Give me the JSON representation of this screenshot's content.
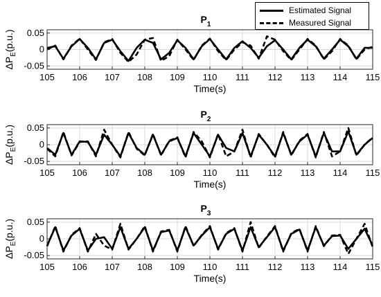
{
  "legend": {
    "items": [
      {
        "label": "Estimated Signal",
        "style": "solid"
      },
      {
        "label": "Measured Signal",
        "style": "dashed"
      }
    ]
  },
  "colors": {
    "line": "#000000",
    "grid": "#d9d9d9",
    "axis": "#262626"
  },
  "chart_data": [
    {
      "type": "line",
      "title": "P1",
      "title_main": "P",
      "title_sub": "1",
      "xlabel": "Time(s)",
      "ylabel": "ΔP",
      "ylabel_sub": "E",
      "ylabel_unit": "(p.u.)",
      "xlim": [
        105,
        115
      ],
      "ylim": [
        -0.06,
        0.06
      ],
      "xticks": [
        105,
        106,
        107,
        108,
        109,
        110,
        111,
        112,
        113,
        114,
        115
      ],
      "yticks": [
        -0.05,
        0,
        0.05
      ],
      "ytick_labels": [
        "-0.05",
        "0",
        "0.05"
      ],
      "grid": true,
      "series": [
        {
          "name": "Estimated Signal",
          "style": "solid",
          "x": [
            105.0,
            105.25,
            105.5,
            105.75,
            106.0,
            106.25,
            106.5,
            106.75,
            107.0,
            107.25,
            107.5,
            107.75,
            108.0,
            108.25,
            108.5,
            108.75,
            109.0,
            109.25,
            109.5,
            109.75,
            110.0,
            110.25,
            110.5,
            110.75,
            111.0,
            111.25,
            111.5,
            111.75,
            112.0,
            112.25,
            112.5,
            112.75,
            113.0,
            113.25,
            113.5,
            113.75,
            114.0,
            114.25,
            114.5,
            114.75,
            115.0
          ],
          "y": [
            0.005,
            0.01,
            -0.028,
            0.01,
            0.032,
            0.005,
            -0.03,
            0.02,
            0.03,
            -0.005,
            -0.035,
            0.005,
            0.03,
            0.02,
            -0.03,
            -0.01,
            0.028,
            0.005,
            -0.03,
            0.01,
            0.032,
            0.0,
            -0.03,
            0.005,
            0.025,
            0.005,
            -0.025,
            0.01,
            0.028,
            0.0,
            -0.03,
            0.005,
            0.03,
            0.01,
            -0.028,
            0.0,
            0.03,
            0.01,
            -0.028,
            0.005,
            0.005
          ]
        },
        {
          "name": "Measured Signal",
          "style": "dashed",
          "x": [
            105.0,
            105.25,
            105.5,
            105.75,
            106.0,
            106.25,
            106.5,
            106.75,
            107.0,
            107.25,
            107.5,
            107.75,
            108.0,
            108.25,
            108.5,
            108.75,
            109.0,
            109.25,
            109.5,
            109.75,
            110.0,
            110.25,
            110.5,
            110.75,
            111.0,
            111.25,
            111.5,
            111.75,
            112.0,
            112.25,
            112.5,
            112.75,
            113.0,
            113.25,
            113.5,
            113.75,
            114.0,
            114.25,
            114.5,
            114.75,
            115.0
          ],
          "y": [
            0.0,
            0.012,
            -0.03,
            0.012,
            0.033,
            0.0,
            -0.032,
            0.022,
            0.032,
            -0.01,
            -0.038,
            -0.015,
            0.03,
            0.035,
            -0.035,
            -0.02,
            0.03,
            0.0,
            -0.032,
            0.012,
            0.033,
            -0.005,
            -0.032,
            0.0,
            0.022,
            0.012,
            -0.028,
            0.04,
            0.03,
            -0.005,
            -0.032,
            0.0,
            0.032,
            0.012,
            -0.03,
            -0.005,
            0.032,
            0.012,
            -0.03,
            0.0,
            0.008
          ]
        }
      ]
    },
    {
      "type": "line",
      "title": "P2",
      "title_main": "P",
      "title_sub": "2",
      "xlabel": "Time(s)",
      "ylabel": "ΔP",
      "ylabel_sub": "E",
      "ylabel_unit": "(p.u.)",
      "xlim": [
        105,
        115
      ],
      "ylim": [
        -0.06,
        0.06
      ],
      "xticks": [
        105,
        106,
        107,
        108,
        109,
        110,
        111,
        112,
        113,
        114,
        115
      ],
      "yticks": [
        -0.05,
        0,
        0.05
      ],
      "ytick_labels": [
        "-0.05",
        "0",
        "0.05"
      ],
      "grid": true,
      "series": [
        {
          "name": "Estimated Signal",
          "style": "solid",
          "x": [
            105.0,
            105.25,
            105.5,
            105.75,
            106.0,
            106.25,
            106.5,
            106.75,
            107.0,
            107.25,
            107.5,
            107.75,
            108.0,
            108.25,
            108.5,
            108.75,
            109.0,
            109.25,
            109.5,
            109.75,
            110.0,
            110.25,
            110.5,
            110.75,
            111.0,
            111.25,
            111.5,
            111.75,
            112.0,
            112.25,
            112.5,
            112.75,
            113.0,
            113.25,
            113.5,
            113.75,
            114.0,
            114.25,
            114.5,
            114.75,
            115.0
          ],
          "y": [
            -0.01,
            -0.03,
            0.035,
            -0.03,
            0.01,
            0.008,
            -0.03,
            0.03,
            0.0,
            -0.035,
            0.035,
            -0.01,
            -0.03,
            0.03,
            -0.03,
            0.01,
            0.02,
            -0.035,
            0.035,
            0.0,
            -0.035,
            0.03,
            -0.01,
            -0.02,
            0.035,
            -0.035,
            0.03,
            0.0,
            -0.035,
            0.035,
            -0.03,
            0.01,
            0.03,
            -0.035,
            0.035,
            -0.02,
            -0.02,
            0.04,
            -0.03,
            0.0,
            0.02
          ]
        },
        {
          "name": "Measured Signal",
          "style": "dashed",
          "x": [
            105.0,
            105.25,
            105.5,
            105.75,
            106.0,
            106.25,
            106.5,
            106.75,
            107.0,
            107.25,
            107.5,
            107.75,
            108.0,
            108.25,
            108.5,
            108.75,
            109.0,
            109.25,
            109.5,
            109.75,
            110.0,
            110.25,
            110.5,
            110.75,
            111.0,
            111.25,
            111.5,
            111.75,
            112.0,
            112.25,
            112.5,
            112.75,
            113.0,
            113.25,
            113.5,
            113.75,
            114.0,
            114.25,
            114.5,
            114.75,
            115.0
          ],
          "y": [
            -0.012,
            -0.035,
            0.038,
            -0.032,
            0.008,
            0.01,
            -0.035,
            0.045,
            0.0,
            -0.038,
            0.038,
            -0.012,
            -0.032,
            0.032,
            -0.032,
            0.012,
            0.022,
            -0.038,
            0.038,
            0.01,
            -0.038,
            0.032,
            -0.035,
            -0.02,
            0.045,
            -0.038,
            0.032,
            0.0,
            -0.038,
            0.038,
            -0.032,
            0.012,
            0.032,
            -0.038,
            0.038,
            -0.035,
            -0.02,
            0.05,
            -0.032,
            0.0,
            0.022
          ]
        }
      ]
    },
    {
      "type": "line",
      "title": "P3",
      "title_main": "P",
      "title_sub": "3",
      "xlabel": "Time(s)",
      "ylabel": "ΔP",
      "ylabel_sub": "E",
      "ylabel_unit": "(p.u.)",
      "xlim": [
        105,
        115
      ],
      "ylim": [
        -0.06,
        0.06
      ],
      "xticks": [
        105,
        106,
        107,
        108,
        109,
        110,
        111,
        112,
        113,
        114,
        115
      ],
      "yticks": [
        -0.05,
        0,
        0.05
      ],
      "ytick_labels": [
        "-0.05",
        "0",
        "0.05"
      ],
      "grid": true,
      "series": [
        {
          "name": "Estimated Signal",
          "style": "solid",
          "x": [
            105.0,
            105.25,
            105.5,
            105.75,
            106.0,
            106.25,
            106.5,
            106.75,
            107.0,
            107.25,
            107.5,
            107.75,
            108.0,
            108.25,
            108.5,
            108.75,
            109.0,
            109.25,
            109.5,
            109.75,
            110.0,
            110.25,
            110.5,
            110.75,
            111.0,
            111.25,
            111.5,
            111.75,
            112.0,
            112.25,
            112.5,
            112.75,
            113.0,
            113.25,
            113.5,
            113.75,
            114.0,
            114.25,
            114.5,
            114.75,
            115.0
          ],
          "y": [
            -0.02,
            0.035,
            -0.035,
            0.01,
            0.03,
            -0.035,
            0.0,
            0.005,
            -0.03,
            0.035,
            -0.03,
            0.0,
            0.035,
            -0.035,
            0.02,
            0.025,
            -0.035,
            0.035,
            -0.02,
            0.01,
            0.035,
            -0.03,
            0.015,
            0.03,
            -0.035,
            0.035,
            -0.025,
            0.005,
            0.035,
            -0.035,
            0.015,
            0.028,
            -0.035,
            0.035,
            -0.02,
            0.008,
            0.01,
            -0.03,
            0.0,
            0.03,
            -0.02
          ]
        },
        {
          "name": "Measured Signal",
          "style": "dashed",
          "x": [
            105.0,
            105.25,
            105.5,
            105.75,
            106.0,
            106.25,
            106.5,
            106.75,
            107.0,
            107.25,
            107.5,
            107.75,
            108.0,
            108.25,
            108.5,
            108.75,
            109.0,
            109.25,
            109.5,
            109.75,
            110.0,
            110.25,
            110.5,
            110.75,
            111.0,
            111.25,
            111.5,
            111.75,
            112.0,
            112.25,
            112.5,
            112.75,
            113.0,
            113.25,
            113.5,
            113.75,
            114.0,
            114.25,
            114.5,
            114.75,
            115.0
          ],
          "y": [
            -0.022,
            0.038,
            -0.038,
            0.012,
            0.032,
            -0.038,
            0.015,
            -0.02,
            -0.032,
            0.045,
            -0.032,
            0.0,
            0.038,
            -0.038,
            0.022,
            0.027,
            -0.038,
            0.038,
            -0.022,
            0.012,
            0.038,
            -0.032,
            0.017,
            0.032,
            -0.038,
            0.05,
            -0.027,
            0.007,
            0.038,
            -0.038,
            0.017,
            0.03,
            -0.038,
            0.038,
            -0.022,
            0.01,
            0.012,
            -0.045,
            0.0,
            0.045,
            -0.025
          ]
        }
      ]
    }
  ]
}
